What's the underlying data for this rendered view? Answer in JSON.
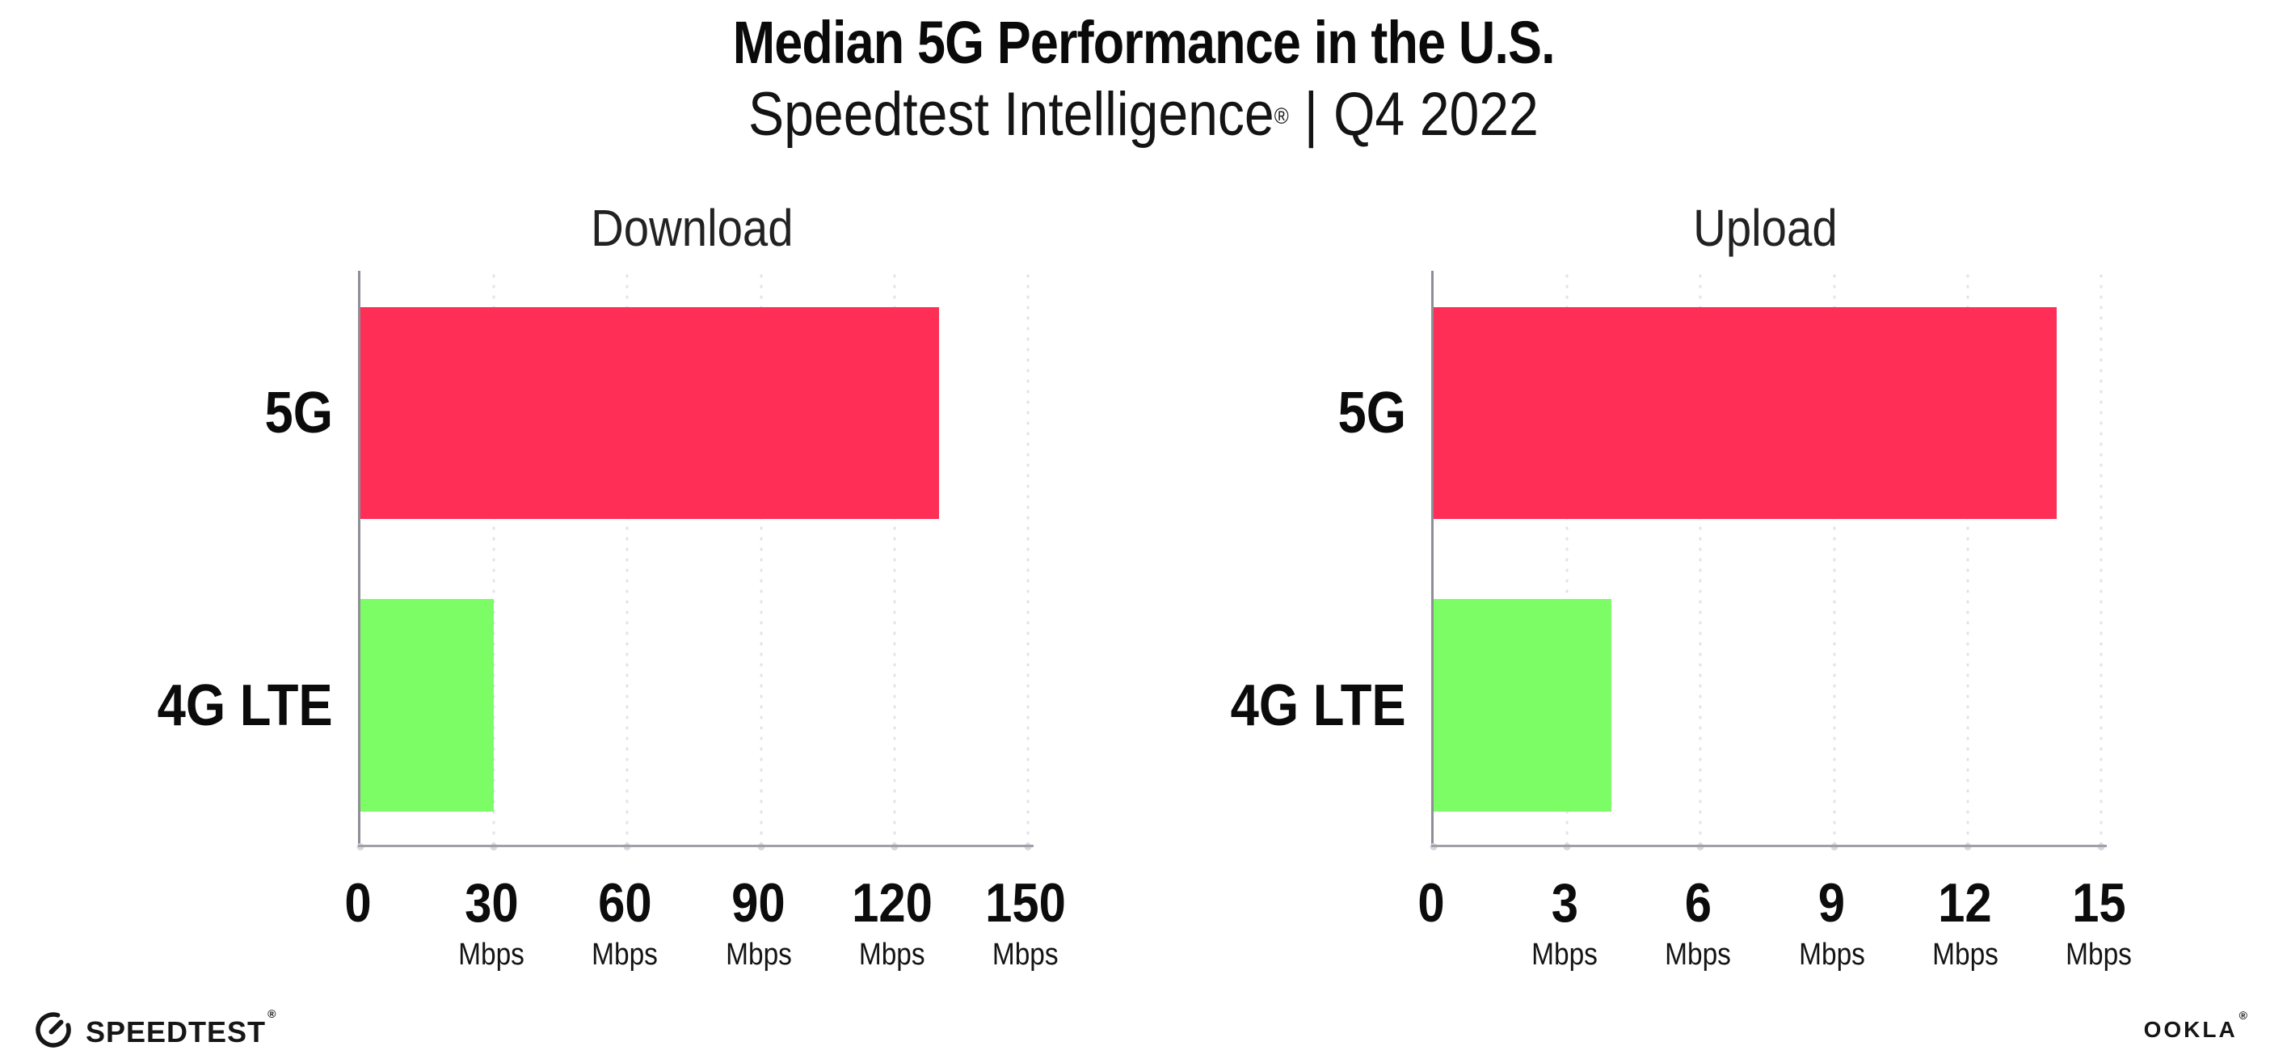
{
  "header": {
    "title": "Median 5G Performance in the U.S.",
    "subtitle": {
      "brand": "Speedtest Intelligence",
      "registered_mark": "®",
      "separator": "|",
      "period": "Q4 2022"
    }
  },
  "chart_data": [
    {
      "type": "bar",
      "orientation": "horizontal",
      "title": "Download",
      "categories": [
        "5G",
        "4G LTE"
      ],
      "values": [
        130,
        30
      ],
      "unit": "Mbps",
      "xlim": [
        0,
        150
      ],
      "xticks": [
        {
          "value": 0,
          "label": "0",
          "unit": ""
        },
        {
          "value": 30,
          "label": "30",
          "unit": "Mbps"
        },
        {
          "value": 60,
          "label": "60",
          "unit": "Mbps"
        },
        {
          "value": 90,
          "label": "90",
          "unit": "Mbps"
        },
        {
          "value": 120,
          "label": "120",
          "unit": "Mbps"
        },
        {
          "value": 150,
          "label": "150",
          "unit": "Mbps"
        }
      ],
      "bar_colors": [
        "#ff2e56",
        "#7cfd65"
      ],
      "grid": "dotted vertical gridlines at each tick",
      "legend": "none"
    },
    {
      "type": "bar",
      "orientation": "horizontal",
      "title": "Upload",
      "categories": [
        "5G",
        "4G LTE"
      ],
      "values": [
        14,
        4
      ],
      "unit": "Mbps",
      "xlim": [
        0,
        15
      ],
      "xticks": [
        {
          "value": 0,
          "label": "0",
          "unit": ""
        },
        {
          "value": 3,
          "label": "3",
          "unit": "Mbps"
        },
        {
          "value": 6,
          "label": "6",
          "unit": "Mbps"
        },
        {
          "value": 9,
          "label": "9",
          "unit": "Mbps"
        },
        {
          "value": 12,
          "label": "12",
          "unit": "Mbps"
        },
        {
          "value": 15,
          "label": "15",
          "unit": "Mbps"
        }
      ],
      "bar_colors": [
        "#ff2e56",
        "#7cfd65"
      ],
      "grid": "dotted vertical gridlines at each tick",
      "legend": "none"
    }
  ],
  "footer": {
    "speedtest_label": "SPEEDTEST",
    "speedtest_mark": "®",
    "speedtest_icon": "circular-gauge-with-needle",
    "ookla_label": "OOKLA",
    "ookla_mark": "®"
  },
  "colors": {
    "bar_5g": "#ff2e56",
    "bar_4g_lte": "#7cfd65",
    "axis_line": "#9a9aa0",
    "gridline_dots": "#e2e2ec",
    "text": "#0d0d0d"
  }
}
